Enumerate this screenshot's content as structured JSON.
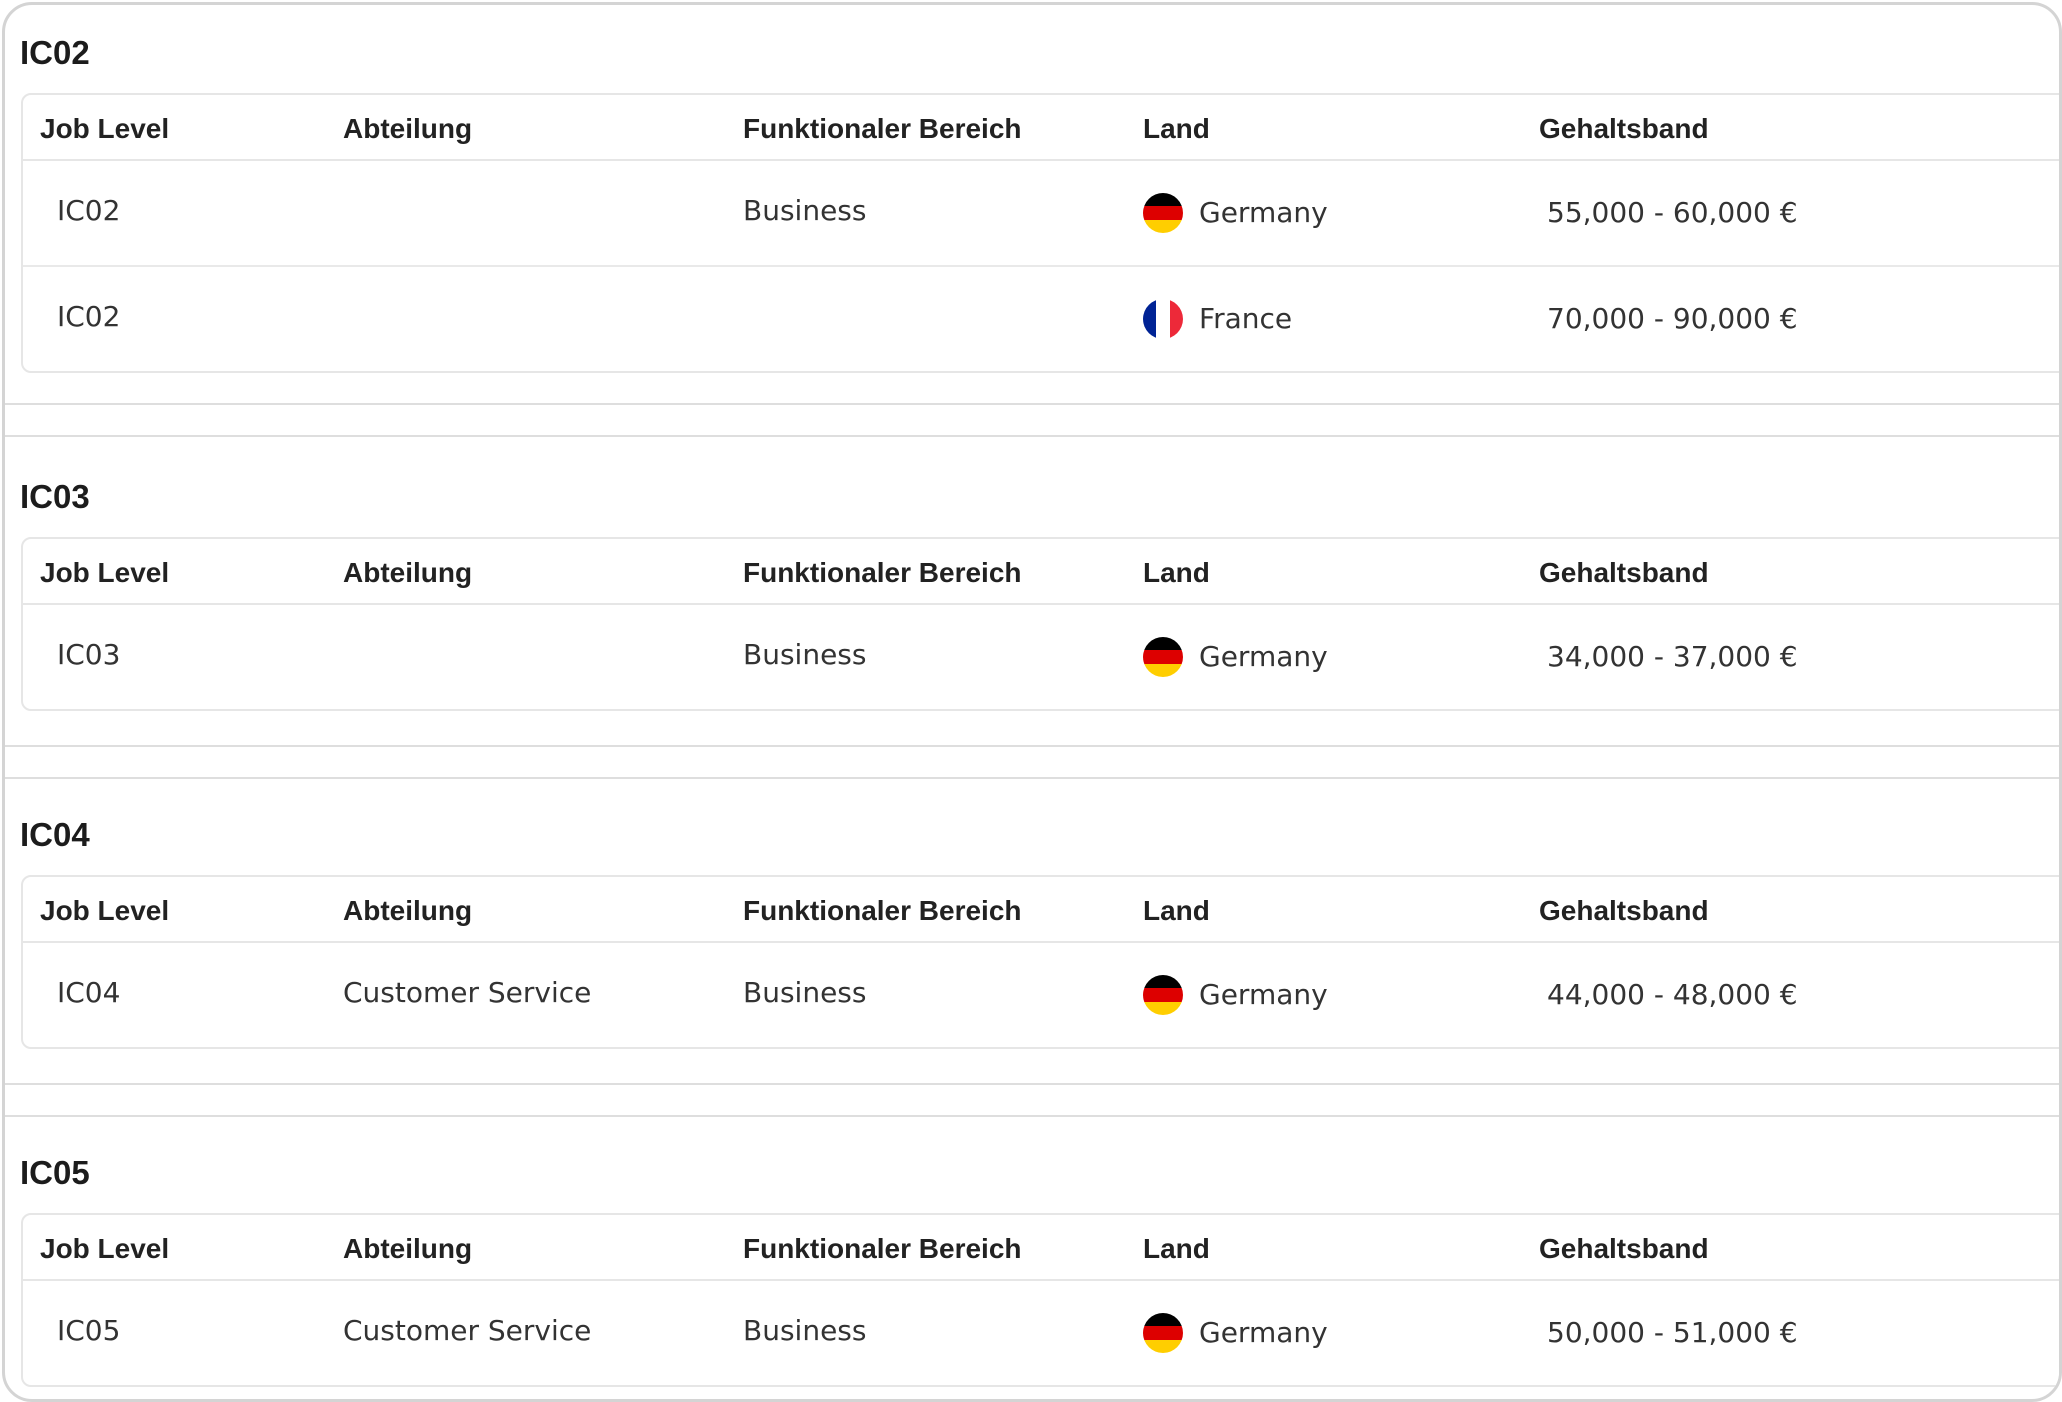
{
  "columns": {
    "job_level": "Job Level",
    "abteilung": "Abteilung",
    "bereich": "Funktionaler Bereich",
    "land": "Land",
    "gehaltsband": "Gehaltsband"
  },
  "flags": {
    "germany": [
      "#000000",
      "#dd0000",
      "#ffce00"
    ],
    "france": [
      "#002395",
      "#ffffff",
      "#ed2939"
    ]
  },
  "groups": [
    {
      "title": "IC02",
      "rows": [
        {
          "job_level": "IC02",
          "abteilung": "",
          "bereich": "Business",
          "land": "Germany",
          "flag_icon": "germany-flag-icon",
          "gehaltsband": "55,000 - 60,000 €"
        },
        {
          "job_level": "IC02",
          "abteilung": "",
          "bereich": "",
          "land": "France",
          "flag_icon": "france-flag-icon",
          "gehaltsband": "70,000 - 90,000 €"
        }
      ]
    },
    {
      "title": "IC03",
      "rows": [
        {
          "job_level": "IC03",
          "abteilung": "",
          "bereich": "Business",
          "land": "Germany",
          "flag_icon": "germany-flag-icon",
          "gehaltsband": "34,000 - 37,000 €"
        }
      ]
    },
    {
      "title": "IC04",
      "rows": [
        {
          "job_level": "IC04",
          "abteilung": "Customer Service",
          "bereich": "Business",
          "land": "Germany",
          "flag_icon": "germany-flag-icon",
          "gehaltsband": "44,000 - 48,000 €"
        }
      ]
    },
    {
      "title": "IC05",
      "rows": [
        {
          "job_level": "IC05",
          "abteilung": "Customer Service",
          "bereich": "Business",
          "land": "Germany",
          "flag_icon": "germany-flag-icon",
          "gehaltsband": "50,000 - 51,000 €"
        }
      ]
    }
  ]
}
